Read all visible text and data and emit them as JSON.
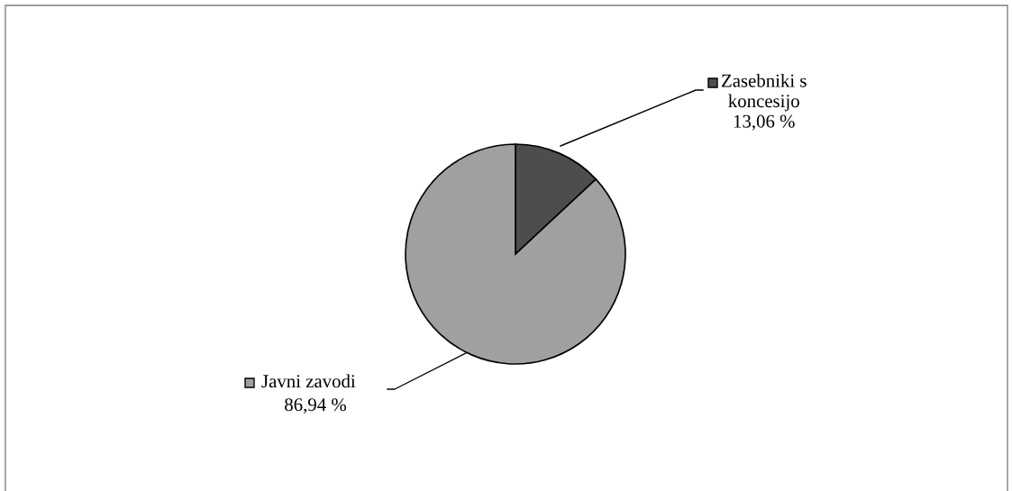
{
  "chart_data": {
    "type": "pie",
    "categories": [
      "Zasebniki s\nkoncesijo",
      "Javni zavodi"
    ],
    "values": [
      13.06,
      86.94
    ],
    "colors": [
      "#4d4d4d",
      "#a0a0a0"
    ],
    "value_labels": [
      "13,06 %",
      "86,94 %"
    ],
    "legend": "top right"
  }
}
